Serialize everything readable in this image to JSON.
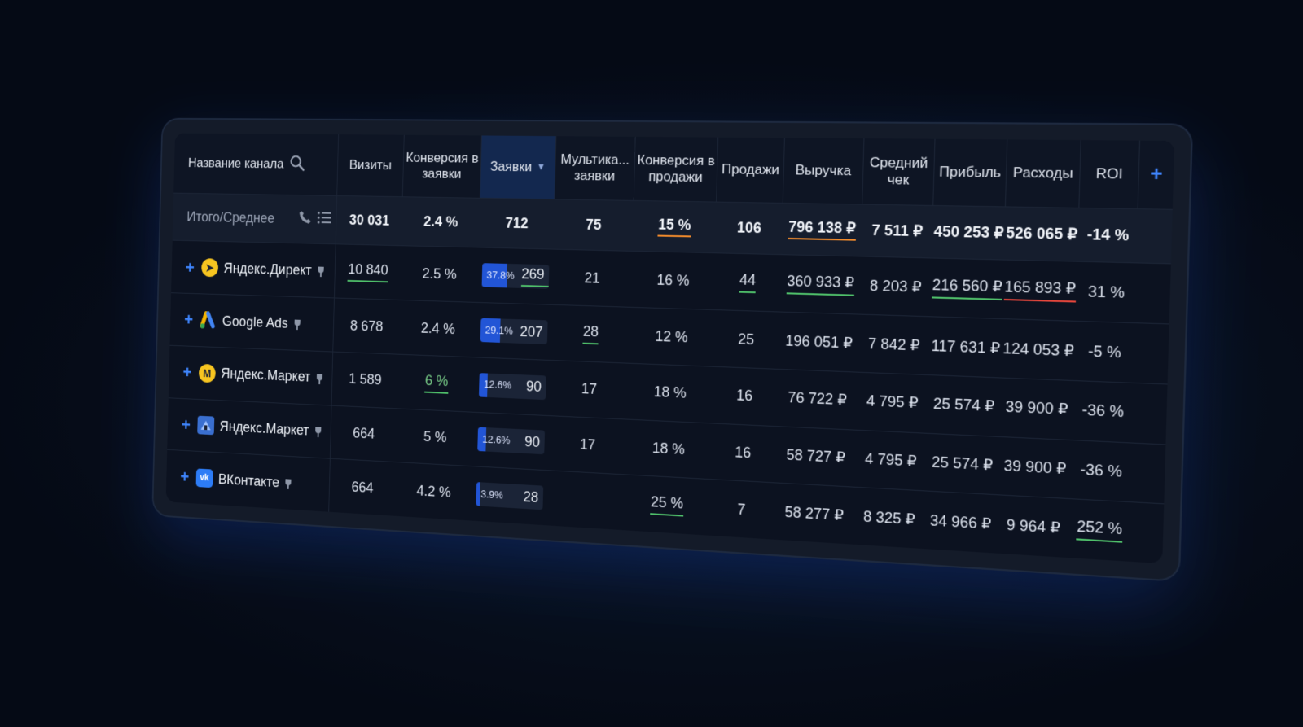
{
  "header": {
    "channel_name": "Название канала",
    "columns": [
      "Визиты",
      "Конверсия в заявки",
      "Заявки",
      "Мультика... заявки",
      "Конверсия в продажи",
      "Продажи",
      "Выручка",
      "Средний чек",
      "Прибыль",
      "Расходы",
      "ROI"
    ],
    "active_sort_label": "Заявки",
    "sort_icon": "▼",
    "add_column": "+"
  },
  "total": {
    "label": "Итого/Среднее",
    "values": [
      "30 031",
      "2.4 %",
      "712",
      "75",
      "15 %",
      "106",
      "796 138 ₽",
      "7 511 ₽",
      "450 253 ₽",
      "526 065 ₽",
      "-14 %"
    ]
  },
  "rows": [
    {
      "name": "Яндекс.Директ",
      "icon": "yandex-direct-icon",
      "visits": "10 840",
      "conv_req": "2.5 %",
      "req_pct": "37.8%",
      "req_fill": 0.378,
      "req": "269",
      "multi": "21",
      "conv_sales": "16 %",
      "sales": "44",
      "revenue": "360 933 ₽",
      "avg": "8 203 ₽",
      "profit": "216 560 ₽",
      "costs": "165 893 ₽",
      "roi": "31 %"
    },
    {
      "name": "Google Ads",
      "icon": "google-ads-icon",
      "visits": "8 678",
      "conv_req": "2.4 %",
      "req_pct": "29.1%",
      "req_fill": 0.291,
      "req": "207",
      "multi": "28",
      "conv_sales": "12 %",
      "sales": "25",
      "revenue": "196 051 ₽",
      "avg": "7 842 ₽",
      "profit": "117 631 ₽",
      "costs": "124 053 ₽",
      "roi": "-5 %"
    },
    {
      "name": "Яндекс.Маркет",
      "icon": "yandex-market-icon",
      "visits": "1 589",
      "conv_req": "6 %",
      "req_pct": "12.6%",
      "req_fill": 0.126,
      "req": "90",
      "multi": "17",
      "conv_sales": "18 %",
      "sales": "16",
      "revenue": "76 722 ₽",
      "avg": "4 795 ₽",
      "profit": "25 574 ₽",
      "costs": "39 900 ₽",
      "roi": "-36 %"
    },
    {
      "name": "Яндекс.Маркет",
      "icon": "yandex-market-alt-icon",
      "visits": "664",
      "conv_req": "5 %",
      "req_pct": "12.6%",
      "req_fill": 0.126,
      "req": "90",
      "multi": "17",
      "conv_sales": "18 %",
      "sales": "16",
      "revenue": "58 727 ₽",
      "avg": "4 795 ₽",
      "profit": "25 574 ₽",
      "costs": "39 900 ₽",
      "roi": "-36 %"
    },
    {
      "name": "ВКонтакте",
      "icon": "vk-icon",
      "visits": "664",
      "conv_req": "4.2 %",
      "req_pct": "3.9%",
      "req_fill": 0.039,
      "req": "28",
      "multi": "",
      "conv_sales": "25 %",
      "sales": "7",
      "revenue": "58 277 ₽",
      "avg": "8 325 ₽",
      "profit": "34 966 ₽",
      "costs": "9 964 ₽",
      "roi": "252 %"
    }
  ],
  "icon_glyphs": {
    "direct": "➤",
    "market": "M",
    "vk": "vk"
  },
  "colors": {
    "accent": "#3f86ff",
    "bar_fill": "#2255d6",
    "positive": "#4fbf6a",
    "warning": "#f08a2c",
    "negative": "#e5463c"
  }
}
